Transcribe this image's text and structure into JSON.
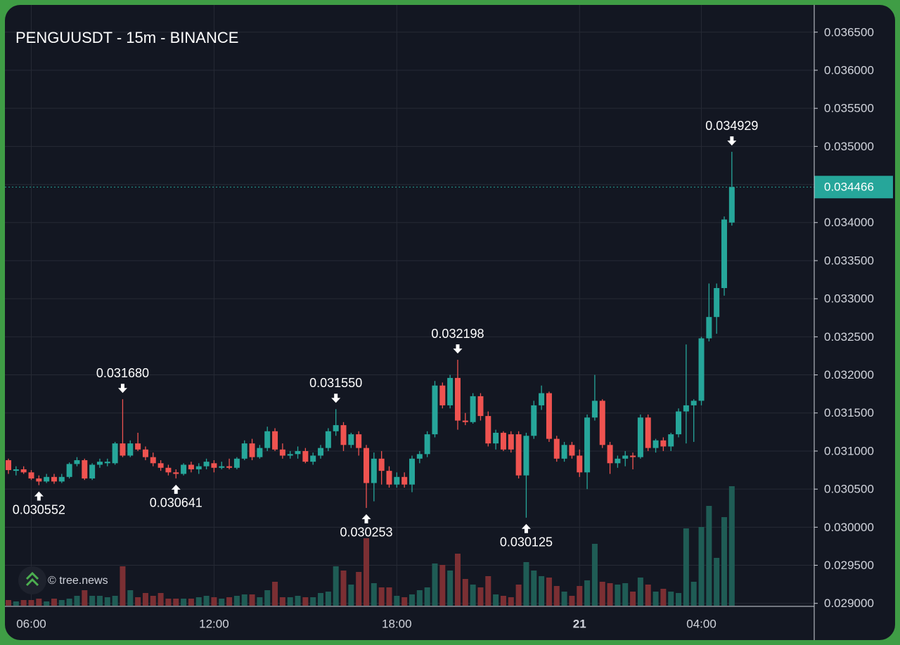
{
  "chart_data": {
    "type": "candlestick",
    "title": "PENGUUSDT - 15m - BINANCE",
    "watermark": "© tree.news",
    "up_color": "#26a69a",
    "down_color": "#ef5350",
    "volume_up_color": "#1f5c55",
    "volume_down_color": "#7b2f33",
    "grid": true,
    "ylim": [
      0.02897,
      0.03683
    ],
    "yticks": [
      {
        "value": 0.0365,
        "label": "0.036500"
      },
      {
        "value": 0.036,
        "label": "0.036000"
      },
      {
        "value": 0.0355,
        "label": "0.035500"
      },
      {
        "value": 0.035,
        "label": "0.035000"
      },
      {
        "value": 0.0345,
        "label": "0.034500"
      },
      {
        "value": 0.034,
        "label": "0.034000"
      },
      {
        "value": 0.0335,
        "label": "0.033500"
      },
      {
        "value": 0.033,
        "label": "0.033000"
      },
      {
        "value": 0.0325,
        "label": "0.032500"
      },
      {
        "value": 0.032,
        "label": "0.032000"
      },
      {
        "value": 0.0315,
        "label": "0.031500"
      },
      {
        "value": 0.031,
        "label": "0.031000"
      },
      {
        "value": 0.0305,
        "label": "0.030500"
      },
      {
        "value": 0.03,
        "label": "0.030000"
      },
      {
        "value": 0.0295,
        "label": "0.029500"
      },
      {
        "value": 0.029,
        "label": "0.029000"
      }
    ],
    "categories": [
      null,
      null,
      null,
      "06:00",
      null,
      null,
      null,
      null,
      null,
      null,
      null,
      null,
      null,
      null,
      null,
      null,
      null,
      null,
      null,
      null,
      null,
      null,
      null,
      null,
      null,
      null,
      null,
      "12:00",
      null,
      null,
      null,
      null,
      null,
      null,
      null,
      null,
      null,
      null,
      null,
      null,
      null,
      null,
      null,
      null,
      null,
      null,
      null,
      null,
      null,
      null,
      null,
      "18:00",
      null,
      null,
      null,
      null,
      null,
      null,
      null,
      null,
      null,
      null,
      null,
      null,
      null,
      null,
      null,
      null,
      null,
      null,
      null,
      null,
      null,
      null,
      null,
      "21",
      null,
      null,
      null,
      null,
      null,
      null,
      null,
      null,
      null,
      null,
      null,
      null,
      null,
      null,
      null,
      "04:00",
      null,
      null,
      null,
      null
    ],
    "open": [
      0.03088,
      0.03074,
      0.03076,
      0.03072,
      0.03064,
      0.0306,
      0.03066,
      0.0306,
      0.03066,
      0.03083,
      0.03088,
      0.03064,
      0.03082,
      0.03084,
      0.03084,
      0.0311,
      0.03094,
      0.0311,
      0.03102,
      0.03092,
      0.03084,
      0.03078,
      0.03072,
      0.0307,
      0.03082,
      0.03076,
      0.0308,
      0.03084,
      0.03078,
      0.0308,
      0.03078,
      0.0309,
      0.0311,
      0.03092,
      0.03104,
      0.03126,
      0.03102,
      0.03094,
      0.03096,
      0.031,
      0.03086,
      0.03094,
      0.03104,
      0.03126,
      0.03134,
      0.03108,
      0.03122,
      0.03104,
      0.03058,
      0.0309,
      0.03074,
      0.03056,
      0.03066,
      0.03056,
      0.0309,
      0.03096,
      0.03122,
      0.03186,
      0.0316,
      0.03196,
      0.0314,
      0.03138,
      0.03172,
      0.03146,
      0.0311,
      0.03124,
      0.03122,
      0.03122,
      0.03068,
      0.0312,
      0.0316,
      0.03176,
      0.03116,
      0.0309,
      0.03108,
      0.03094,
      0.03072,
      0.03144,
      0.03166,
      0.03108,
      0.03084,
      0.0309,
      0.03094,
      0.03092,
      0.03144,
      0.03104,
      0.03114,
      0.03106,
      0.03122,
      0.03152,
      0.0316,
      0.03166,
      0.03248,
      0.03276,
      0.03314,
      0.034
    ],
    "high": [
      0.0309,
      0.0308,
      0.0308,
      0.03075,
      0.03068,
      0.0307,
      0.0307,
      0.0307,
      0.03085,
      0.03092,
      0.0309,
      0.03084,
      0.0309,
      0.0309,
      0.03112,
      0.03168,
      0.03114,
      0.03124,
      0.03106,
      0.03098,
      0.03088,
      0.03082,
      0.03076,
      0.03084,
      0.03086,
      0.03084,
      0.0309,
      0.03088,
      0.03086,
      0.0309,
      0.03092,
      0.03114,
      0.03116,
      0.03108,
      0.03132,
      0.0313,
      0.0311,
      0.031,
      0.03106,
      0.03104,
      0.03098,
      0.03108,
      0.0313,
      0.03155,
      0.03138,
      0.03124,
      0.03126,
      0.03108,
      0.03098,
      0.031,
      0.0308,
      0.03072,
      0.03072,
      0.03094,
      0.031,
      0.03126,
      0.03192,
      0.0319,
      0.032,
      0.032198,
      0.0315,
      0.03176,
      0.03176,
      0.03152,
      0.03128,
      0.03126,
      0.03126,
      0.03126,
      0.03124,
      0.03166,
      0.03186,
      0.03178,
      0.0312,
      0.03112,
      0.03112,
      0.03102,
      0.03148,
      0.032,
      0.03168,
      0.03112,
      0.03094,
      0.031,
      0.03098,
      0.03148,
      0.03148,
      0.03116,
      0.03118,
      0.03124,
      0.03156,
      0.0324,
      0.03168,
      0.0325,
      0.0332,
      0.0332,
      0.03408,
      0.034929
    ],
    "low": [
      0.0307,
      0.03068,
      0.0307,
      0.03062,
      0.030552,
      0.03058,
      0.03057,
      0.03058,
      0.03064,
      0.0308,
      0.03062,
      0.03062,
      0.03078,
      0.0308,
      0.03082,
      0.03092,
      0.03092,
      0.031,
      0.03088,
      0.0308,
      0.03074,
      0.03068,
      0.030641,
      0.03068,
      0.03072,
      0.0307,
      0.03076,
      0.03072,
      0.03076,
      0.03076,
      0.03076,
      0.03088,
      0.03088,
      0.0309,
      0.031,
      0.031,
      0.0309,
      0.0309,
      0.0309,
      0.03084,
      0.03082,
      0.0309,
      0.031,
      0.0312,
      0.031,
      0.03104,
      0.03094,
      0.030253,
      0.03034,
      0.03056,
      0.03052,
      0.03052,
      0.03052,
      0.03046,
      0.03084,
      0.03092,
      0.03118,
      0.03156,
      0.03156,
      0.03128,
      0.03134,
      0.03136,
      0.0314,
      0.03106,
      0.03102,
      0.031,
      0.03098,
      0.03064,
      0.030125,
      0.03116,
      0.03154,
      0.03112,
      0.03086,
      0.03086,
      0.0309,
      0.03066,
      0.0305,
      0.0314,
      0.03104,
      0.0307,
      0.03078,
      0.0308,
      0.03076,
      0.0309,
      0.031,
      0.03098,
      0.031,
      0.031,
      0.03118,
      0.0311,
      0.03112,
      0.0316,
      0.03244,
      0.03254,
      0.03304,
      0.03396
    ],
    "close": [
      0.03075,
      0.03076,
      0.03072,
      0.03064,
      0.0306,
      0.03066,
      0.0306,
      0.03066,
      0.03083,
      0.03088,
      0.03064,
      0.03082,
      0.03086,
      0.03086,
      0.0311,
      0.03094,
      0.0311,
      0.03102,
      0.03092,
      0.03084,
      0.03078,
      0.03072,
      0.0307,
      0.03082,
      0.03076,
      0.0308,
      0.03086,
      0.03078,
      0.0308,
      0.03078,
      0.0309,
      0.0311,
      0.03092,
      0.03104,
      0.03126,
      0.03102,
      0.03094,
      0.03096,
      0.031,
      0.03086,
      0.03094,
      0.03104,
      0.03126,
      0.03134,
      0.03108,
      0.03122,
      0.03104,
      0.03058,
      0.0309,
      0.03074,
      0.03056,
      0.03066,
      0.03056,
      0.0309,
      0.03096,
      0.03122,
      0.03186,
      0.0316,
      0.03196,
      0.0314,
      0.03138,
      0.03172,
      0.03146,
      0.0311,
      0.03124,
      0.03102,
      0.03102,
      0.03068,
      0.0312,
      0.0316,
      0.03176,
      0.03116,
      0.0309,
      0.03108,
      0.03094,
      0.03072,
      0.03144,
      0.03166,
      0.03108,
      0.03084,
      0.0309,
      0.03094,
      0.03092,
      0.03144,
      0.03104,
      0.03114,
      0.03106,
      0.03122,
      0.03152,
      0.0316,
      0.03166,
      0.03248,
      0.03276,
      0.03314,
      0.03404,
      0.034466
    ],
    "volume": [
      8,
      6,
      8,
      8,
      10,
      6,
      10,
      8,
      10,
      14,
      22,
      14,
      14,
      12,
      14,
      56,
      22,
      12,
      18,
      14,
      18,
      10,
      10,
      10,
      10,
      12,
      14,
      12,
      10,
      12,
      14,
      16,
      16,
      12,
      22,
      34,
      12,
      12,
      14,
      12,
      12,
      18,
      20,
      56,
      50,
      30,
      48,
      96,
      32,
      26,
      26,
      14,
      12,
      16,
      22,
      26,
      60,
      58,
      50,
      74,
      38,
      30,
      26,
      42,
      16,
      14,
      12,
      30,
      62,
      50,
      42,
      40,
      28,
      20,
      14,
      28,
      36,
      88,
      34,
      32,
      30,
      32,
      20,
      40,
      30,
      20,
      24,
      20,
      18,
      110,
      34,
      112,
      142,
      68,
      126,
      170
    ],
    "high_labels": [
      null,
      null,
      null,
      null,
      null,
      null,
      null,
      null,
      null,
      null,
      null,
      null,
      null,
      null,
      null,
      "0.031680",
      null,
      null,
      null,
      null,
      null,
      null,
      null,
      null,
      null,
      null,
      null,
      null,
      null,
      null,
      null,
      null,
      null,
      null,
      null,
      null,
      null,
      null,
      null,
      null,
      null,
      null,
      null,
      "0.031550",
      null,
      null,
      null,
      null,
      null,
      null,
      null,
      null,
      null,
      null,
      null,
      null,
      null,
      null,
      null,
      "0.032198",
      null,
      null,
      null,
      null,
      null,
      null,
      null,
      null,
      null,
      null,
      null,
      null,
      null,
      null,
      null,
      null,
      null,
      null,
      null,
      null,
      null,
      null,
      null,
      null,
      null,
      null,
      null,
      null,
      null,
      null,
      null,
      null,
      null,
      null,
      null,
      "0.034929"
    ],
    "low_labels": [
      null,
      null,
      null,
      null,
      "0.030552",
      null,
      null,
      null,
      null,
      null,
      null,
      null,
      null,
      null,
      null,
      null,
      null,
      null,
      null,
      null,
      null,
      null,
      "0.030641",
      null,
      null,
      null,
      null,
      null,
      null,
      null,
      null,
      null,
      null,
      null,
      null,
      null,
      null,
      null,
      null,
      null,
      null,
      null,
      null,
      null,
      null,
      null,
      null,
      "0.030253",
      null,
      null,
      null,
      null,
      null,
      null,
      null,
      null,
      null,
      null,
      null,
      null,
      null,
      null,
      null,
      null,
      null,
      null,
      null,
      null,
      "0.030125",
      null,
      null,
      null,
      null,
      null,
      null,
      null,
      null,
      null,
      null,
      null,
      null,
      null,
      null,
      null,
      null,
      null,
      null,
      null,
      null,
      null,
      null,
      null,
      null,
      null,
      null,
      null,
      null,
      null
    ]
  }
}
